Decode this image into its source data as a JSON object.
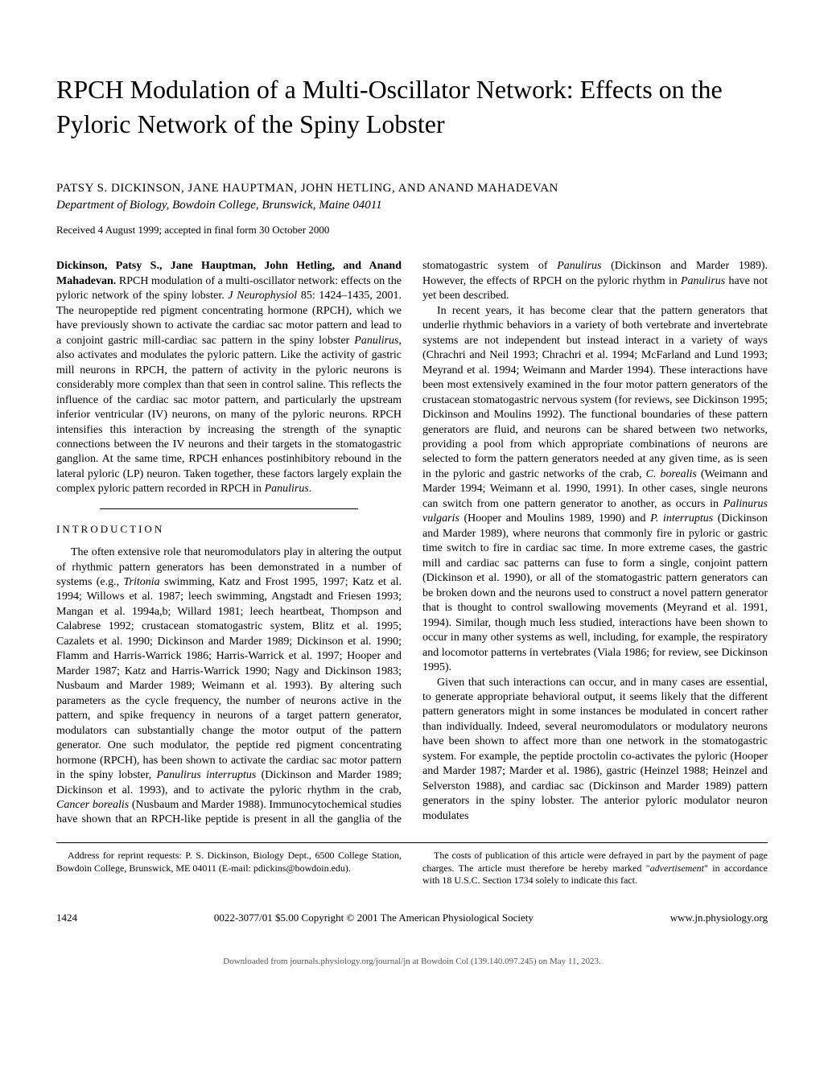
{
  "title": "RPCH Modulation of a Multi-Oscillator Network: Effects on the Pyloric Network of the Spiny Lobster",
  "authors": "PATSY S. DICKINSON, JANE HAUPTMAN, JOHN HETLING, AND ANAND MAHADEVAN",
  "affiliation": "Department of Biology, Bowdoin College, Brunswick, Maine 04011",
  "received": "Received 4 August 1999; accepted in final form 30 October 2000",
  "abstract_authors": "Dickinson, Patsy S., Jane Hauptman, John Hetling, and Anand Mahadevan.",
  "abstract_citation_prefix": " RPCH modulation of a multi-oscillator network: effects on the pyloric network of the spiny lobster. ",
  "abstract_journal": "J Neurophysiol",
  "abstract_citation_suffix": " 85: 1424–1435, 2001. The neuropeptide red pigment concentrating hormone (RPCH), which we have previously shown to activate the cardiac sac motor pattern and lead to a conjoint gastric mill-cardiac sac pattern in the spiny lobster ",
  "abstract_species1": "Panulirus",
  "abstract_body2": ", also activates and modulates the pyloric pattern. Like the activity of gastric mill neurons in RPCH, the pattern of activity in the pyloric neurons is considerably more complex than that seen in control saline. This reflects the influence of the cardiac sac motor pattern, and particularly the upstream inferior ventricular (IV) neurons, on many of the pyloric neurons. RPCH intensifies this interaction by increasing the strength of the synaptic connections between the IV neurons and their targets in the stomatogastric ganglion. At the same time, RPCH enhances postinhibitory rebound in the lateral pyloric (LP) neuron. Taken together, these factors largely explain the complex pyloric pattern recorded in RPCH in ",
  "abstract_species2": "Panulirus",
  "abstract_end": ".",
  "section_heading": "INTRODUCTION",
  "intro_p1_start": "The often extensive role that neuromodulators play in altering the output of rhythmic pattern generators has been demonstrated in a number of systems (e.g., ",
  "intro_tritonia": "Tritonia",
  "intro_p1_mid": " swimming, Katz and Frost 1995, 1997; Katz et al. 1994; Willows et al. 1987; leech swimming, Angstadt and Friesen 1993; Mangan et al. 1994a,b; Willard 1981; leech heartbeat, Thompson and Calabrese 1992; crustacean stomatogastric system, Blitz et al. 1995; Cazalets et al. 1990; Dickinson and Marder 1989; Dickinson et al. 1990; Flamm and Harris-Warrick 1986; Harris-Warrick et al. 1997; Hooper and Marder 1987; Katz and Harris-Warrick 1990; Nagy and Dickinson 1983; Nusbaum and Marder 1989; Weimann et al. 1993). By altering such parameters as the cycle frequency, the number of neurons active in the pattern, and spike frequency in neurons of a target pattern generator, modulators can substantially change the motor output of the pattern generator. One such modulator, the peptide red pigment concentrating hormone (RPCH), has been shown to activate the cardiac sac motor pattern in the spiny lobster, ",
  "intro_panulirus_int": "Panulirus interruptus",
  "intro_p1_mid2": " (Dickinson and Marder 1989; Dickinson et al. 1993), and to activate the pyloric rhythm in the crab, ",
  "intro_cancer": "Cancer borealis",
  "intro_p1_mid3": " (Nusbaum and Marder 1988). Immunocytochemical studies have shown that an RPCH-like peptide is present in all the ganglia of the stomatogastric system of ",
  "intro_panulirus2": "Panulirus",
  "intro_p1_end": " (Dickinson and Marder 1989). However, the effects of RPCH on the pyloric rhythm in ",
  "intro_panulirus3": "Panulirus",
  "intro_p1_final": " have not yet been described.",
  "intro_p2_start": "In recent years, it has become clear that the pattern generators that underlie rhythmic behaviors in a variety of both vertebrate and invertebrate systems are not independent but instead interact in a variety of ways (Chrachri and Neil 1993; Chrachri et al. 1994; McFarland and Lund 1993; Meyrand et al. 1994; Weimann and Marder 1994). These interactions have been most extensively examined in the four motor pattern generators of the crustacean stomatogastric nervous system (for reviews, see Dickinson 1995; Dickinson and Moulins 1992). The functional boundaries of these pattern generators are fluid, and neurons can be shared between two networks, providing a pool from which appropriate combinations of neurons are selected to form the pattern generators needed at any given time, as is seen in the pyloric and gastric networks of the crab, ",
  "intro_cborealis": "C. borealis",
  "intro_p2_mid": " (Weimann and Marder 1994; Weimann et al. 1990, 1991). In other cases, single neurons can switch from one pattern generator to another, as occurs in ",
  "intro_palinurus": "Palinurus vulgaris",
  "intro_p2_mid2": " (Hooper and Moulins 1989, 1990) and ",
  "intro_pinterruptus": "P. interruptus",
  "intro_p2_mid3": " (Dickinson and Marder 1989), where neurons that commonly fire in pyloric or gastric time switch to fire in cardiac sac time. In more extreme cases, the gastric mill and cardiac sac patterns can fuse to form a single, conjoint pattern (Dickinson et al. 1990), or all of the stomatogastric pattern generators can be broken down and the neurons used to construct a novel pattern generator that is thought to control swallowing movements (Meyrand et al. 1991, 1994). Similar, though much less studied, interactions have been shown to occur in many other systems as well, including, for example, the respiratory and locomotor patterns in vertebrates (Viala 1986; for review, see Dickinson 1995).",
  "intro_p3": "Given that such interactions can occur, and in many cases are essential, to generate appropriate behavioral output, it seems likely that the different pattern generators might in some instances be modulated in concert rather than individually. Indeed, several neuromodulators or modulatory neurons have been shown to affect more than one network in the stomatogastric system. For example, the peptide proctolin co-activates the pyloric (Hooper and Marder 1987; Marder et al. 1986), gastric (Heinzel 1988; Heinzel and Selverston 1988), and cardiac sac (Dickinson and Marder 1989) pattern generators in the spiny lobster. The anterior pyloric modulator neuron modulates",
  "footnote1": "Address for reprint requests: P. S. Dickinson, Biology Dept., 6500 College Station, Bowdoin College, Brunswick, ME 04011 (E-mail: pdickins@bowdoin.edu).",
  "footnote2_start": "The costs of publication of this article were defrayed in part by the payment of page charges. The article must therefore be hereby marked \"",
  "footnote2_ad": "advertisement",
  "footnote2_end": "\" in accordance with 18 U.S.C. Section 1734 solely to indicate this fact.",
  "page_number": "1424",
  "copyright": "0022-3077/01 $5.00 Copyright © 2001 The American Physiological Society",
  "url": "www.jn.physiology.org",
  "download": "Downloaded from journals.physiology.org/journal/jn at Bowdoin Col (139.140.097.245) on May 11, 2023."
}
